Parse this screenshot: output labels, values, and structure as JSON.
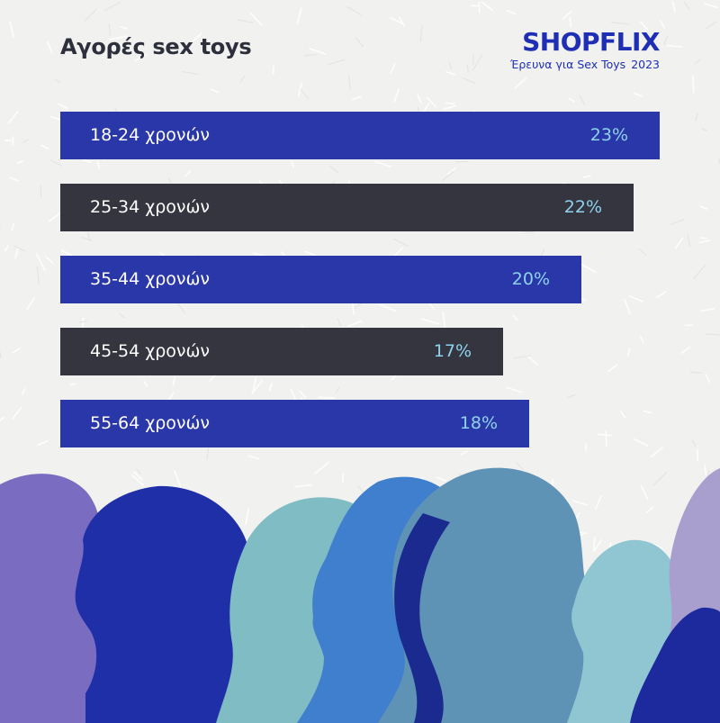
{
  "title": "Αγορές sex toys",
  "brand": {
    "logo": "SHOPFLIX",
    "subtitle": "Έρευνα για Sex Toys",
    "year": "2023"
  },
  "colors": {
    "title": "#2d2f3c",
    "brand": "#1f2fb5",
    "bar_blue": "#2a37a8",
    "bar_dark": "#34353f",
    "value_text": "#8fd2ee",
    "background": "#f1f1ef"
  },
  "chart_data": {
    "type": "bar",
    "orientation": "horizontal",
    "categories": [
      "18-24 χρονών",
      "25-34 χρονών",
      "35-44 χρονών",
      "45-54 χρονών",
      "55-64 χρονών"
    ],
    "values": [
      23,
      22,
      20,
      17,
      18
    ],
    "value_labels": [
      "23%",
      "22%",
      "20%",
      "17%",
      "18%"
    ],
    "bar_colors": [
      "#2a37a8",
      "#34353f",
      "#2a37a8",
      "#34353f",
      "#2a37a8"
    ],
    "unit": "%"
  },
  "illustration": {
    "icon": "silhouettes-of-people-profiles",
    "colors": [
      "#7a6cc0",
      "#1f2fa8",
      "#7fbcc4",
      "#3f7fce",
      "#5f93b6",
      "#8fc6d2",
      "#1c2a9e",
      "#a99fce"
    ]
  }
}
